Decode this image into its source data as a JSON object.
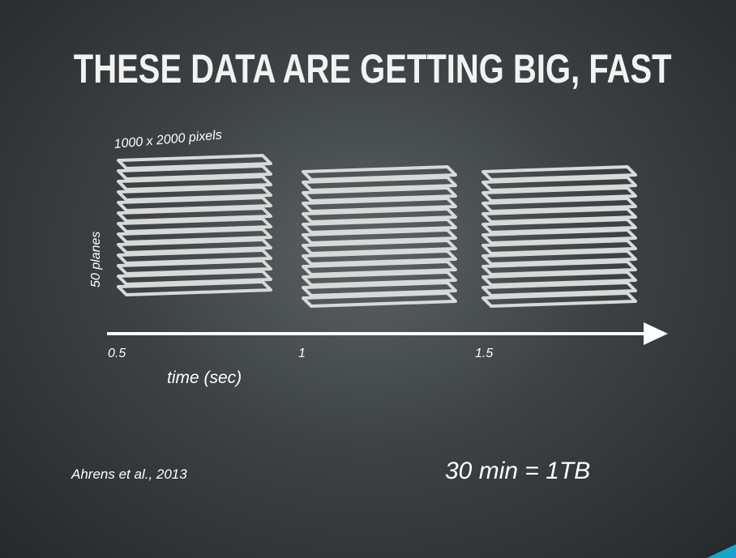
{
  "slide": {
    "title": "THESE DATA ARE GETTING BIG, FAST",
    "pixels_label": "1000 x 2000 pixels",
    "planes_label": "50 planes",
    "axis": {
      "ticks": [
        "0.5",
        "1",
        "1.5"
      ],
      "label": "time (sec)"
    },
    "citation": "Ahrens et al., 2013",
    "size_text": "30 min = 1TB"
  },
  "colors": {
    "background": "#3d4245",
    "text": "#ffffff",
    "accent": "#1aa3c8",
    "plane": "#d9d9d9"
  }
}
